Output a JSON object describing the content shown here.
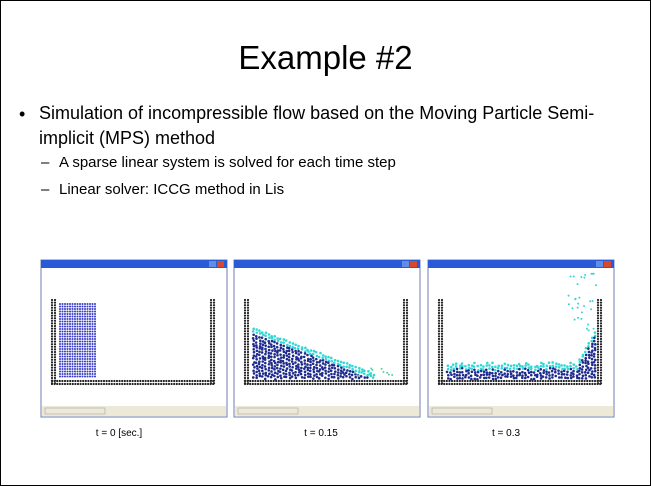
{
  "title": "Example #2",
  "bullets": [
    {
      "text": "Simulation of incompressible flow based on the Moving Particle Semi-implicit (MPS) method",
      "subbullets": [
        "A sparse linear system is solved for each time step",
        "Linear solver: ICCG method in Lis"
      ]
    }
  ],
  "figures": [
    {
      "caption": "t = 0 [sec.]"
    },
    {
      "caption": "t = 0.15"
    },
    {
      "caption": "t = 0.3"
    }
  ]
}
